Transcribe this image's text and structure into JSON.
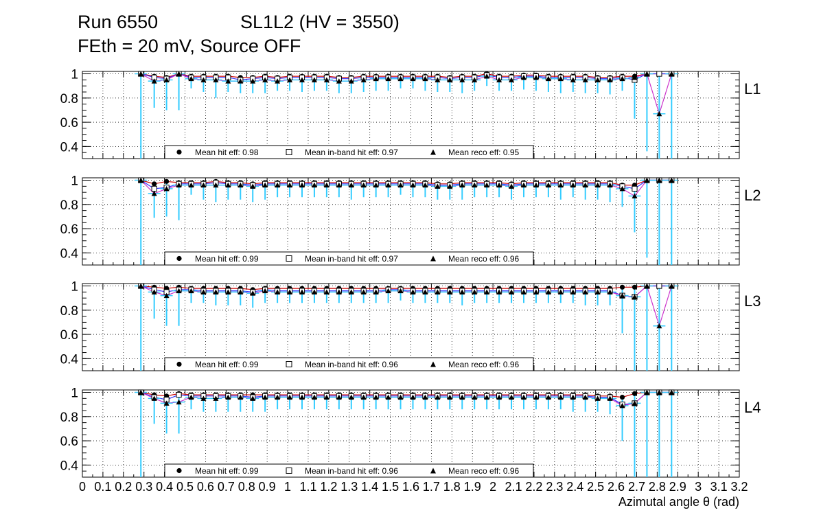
{
  "header": {
    "run": "Run 6550",
    "superlayer": "SL1L2 (HV = 3550)",
    "conditions": "FEth = 20 mV, Source OFF"
  },
  "colors": {
    "hit": "#000000",
    "inband": "#000000",
    "reco": "#000000",
    "error_bar": "#33ccff",
    "line_red": "#cc0000",
    "line_blue": "#3333ff",
    "line_magenta": "#cc33cc",
    "grid": "#000000"
  },
  "chart_data": {
    "type": "scatter",
    "xlabel": "Azimutal angle θ (rad)",
    "xlim": [
      0,
      3.2
    ],
    "ylim": [
      0.3,
      1.02
    ],
    "x_tick_labels": [
      "0",
      "0.1",
      "0.2",
      "0.3",
      "0.4",
      "0.5",
      "0.6",
      "0.7",
      "0.8",
      "0.9",
      "1",
      "1.1",
      "1.2",
      "1.3",
      "1.4",
      "1.5",
      "1.6",
      "1.7",
      "1.8",
      "1.9",
      "2",
      "2.1",
      "2.2",
      "2.3",
      "2.4",
      "2.5",
      "2.6",
      "2.7",
      "2.8",
      "2.9",
      "3",
      "3.1",
      "3.2"
    ],
    "x_ticks": [
      0,
      0.1,
      0.2,
      0.3,
      0.4,
      0.5,
      0.6,
      0.7,
      0.8,
      0.9,
      1.0,
      1.1,
      1.2,
      1.3,
      1.4,
      1.5,
      1.6,
      1.7,
      1.8,
      1.9,
      2.0,
      2.1,
      2.2,
      2.3,
      2.4,
      2.5,
      2.6,
      2.7,
      2.8,
      2.9,
      3.0,
      3.1,
      3.2
    ],
    "y_ticks": [
      0.4,
      0.6,
      0.8,
      1
    ],
    "y_tick_labels": [
      "0.4",
      "0.6",
      "0.8",
      "1"
    ],
    "grid": true,
    "x": [
      0.285,
      0.35,
      0.41,
      0.47,
      0.53,
      0.59,
      0.65,
      0.71,
      0.77,
      0.83,
      0.89,
      0.95,
      1.01,
      1.07,
      1.13,
      1.19,
      1.25,
      1.31,
      1.37,
      1.43,
      1.49,
      1.55,
      1.61,
      1.67,
      1.73,
      1.79,
      1.85,
      1.91,
      1.97,
      2.03,
      2.09,
      2.15,
      2.21,
      2.27,
      2.33,
      2.39,
      2.45,
      2.51,
      2.57,
      2.63,
      2.69,
      2.75,
      2.81,
      2.87
    ],
    "panels": [
      {
        "name": "L1",
        "legend": {
          "hit": "Mean hit  eff: 0.98",
          "inband": "Mean in-band hit eff: 0.97",
          "reco": "Mean reco eff: 0.95"
        },
        "hit": [
          1.0,
          0.98,
          0.97,
          1.0,
          0.98,
          0.98,
          0.98,
          0.98,
          0.97,
          0.97,
          0.98,
          0.97,
          0.98,
          0.98,
          0.98,
          0.98,
          0.97,
          0.97,
          0.98,
          0.98,
          0.98,
          0.98,
          0.98,
          0.98,
          0.98,
          0.97,
          0.98,
          0.98,
          1.0,
          0.98,
          0.98,
          0.99,
          0.99,
          0.98,
          0.98,
          0.98,
          0.98,
          0.97,
          0.97,
          0.98,
          0.98,
          1.0,
          1.0,
          1.0
        ],
        "inband": [
          1.0,
          0.97,
          0.96,
          1.0,
          0.97,
          0.97,
          0.97,
          0.97,
          0.95,
          0.96,
          0.97,
          0.96,
          0.97,
          0.97,
          0.97,
          0.97,
          0.96,
          0.96,
          0.97,
          0.97,
          0.97,
          0.97,
          0.97,
          0.97,
          0.97,
          0.96,
          0.97,
          0.97,
          0.99,
          0.97,
          0.97,
          0.98,
          0.98,
          0.97,
          0.97,
          0.97,
          0.97,
          0.96,
          0.96,
          0.97,
          0.95,
          1.0,
          1.0,
          1.0
        ],
        "reco": [
          1.0,
          0.94,
          0.95,
          1.0,
          0.96,
          0.95,
          0.95,
          0.94,
          0.94,
          0.94,
          0.95,
          0.94,
          0.95,
          0.95,
          0.95,
          0.95,
          0.94,
          0.94,
          0.95,
          0.96,
          0.96,
          0.96,
          0.96,
          0.96,
          0.95,
          0.95,
          0.95,
          0.95,
          0.98,
          0.95,
          0.95,
          0.97,
          0.97,
          0.96,
          0.96,
          0.95,
          0.95,
          0.95,
          0.95,
          0.96,
          0.97,
          1.0,
          0.67,
          1.0
        ],
        "err_low": [
          0.3,
          0.72,
          0.7,
          0.7,
          0.88,
          0.85,
          0.8,
          0.85,
          0.84,
          0.84,
          0.84,
          0.86,
          0.86,
          0.85,
          0.86,
          0.86,
          0.84,
          0.84,
          0.85,
          0.86,
          0.86,
          0.88,
          0.88,
          0.86,
          0.85,
          0.85,
          0.84,
          0.86,
          0.9,
          0.86,
          0.86,
          0.87,
          0.86,
          0.85,
          0.84,
          0.85,
          0.84,
          0.84,
          0.83,
          0.86,
          0.63,
          0.36,
          0.3,
          0.3
        ]
      },
      {
        "name": "L2",
        "legend": {
          "hit": "Mean hit  eff: 0.99",
          "inband": "Mean in-band hit eff: 0.97",
          "reco": "Mean reco eff: 0.96"
        },
        "hit": [
          1.0,
          0.97,
          0.99,
          0.98,
          0.98,
          0.98,
          0.99,
          0.98,
          0.98,
          0.97,
          0.98,
          0.98,
          0.98,
          0.98,
          0.98,
          0.98,
          0.98,
          0.98,
          0.98,
          0.98,
          0.98,
          0.98,
          0.98,
          0.98,
          0.97,
          0.97,
          0.98,
          0.98,
          0.98,
          0.98,
          0.97,
          0.98,
          0.98,
          0.98,
          0.98,
          0.98,
          0.98,
          0.98,
          0.98,
          0.96,
          0.96,
          1.0,
          1.0,
          1.0
        ],
        "inband": [
          1.0,
          0.93,
          0.94,
          0.97,
          0.97,
          0.97,
          0.98,
          0.97,
          0.97,
          0.96,
          0.97,
          0.97,
          0.97,
          0.97,
          0.97,
          0.97,
          0.97,
          0.97,
          0.97,
          0.97,
          0.97,
          0.97,
          0.97,
          0.97,
          0.96,
          0.96,
          0.97,
          0.97,
          0.97,
          0.97,
          0.96,
          0.97,
          0.97,
          0.97,
          0.97,
          0.97,
          0.97,
          0.97,
          0.97,
          0.95,
          0.93,
          1.0,
          1.0,
          1.0
        ],
        "reco": [
          1.0,
          0.89,
          0.93,
          0.96,
          0.96,
          0.96,
          0.96,
          0.96,
          0.96,
          0.95,
          0.96,
          0.96,
          0.96,
          0.96,
          0.96,
          0.96,
          0.96,
          0.96,
          0.96,
          0.96,
          0.96,
          0.96,
          0.96,
          0.96,
          0.95,
          0.95,
          0.96,
          0.96,
          0.96,
          0.96,
          0.95,
          0.96,
          0.96,
          0.96,
          0.96,
          0.96,
          0.96,
          0.96,
          0.96,
          0.93,
          0.87,
          1.0,
          1.0,
          1.0
        ],
        "err_low": [
          0.3,
          0.69,
          0.7,
          0.67,
          0.88,
          0.84,
          0.82,
          0.84,
          0.84,
          0.82,
          0.84,
          0.86,
          0.86,
          0.86,
          0.86,
          0.86,
          0.86,
          0.84,
          0.86,
          0.86,
          0.86,
          0.88,
          0.86,
          0.86,
          0.84,
          0.84,
          0.84,
          0.86,
          0.86,
          0.86,
          0.84,
          0.86,
          0.86,
          0.86,
          0.84,
          0.86,
          0.84,
          0.84,
          0.82,
          0.78,
          0.57,
          0.36,
          0.3,
          0.3
        ]
      },
      {
        "name": "L3",
        "legend": {
          "hit": "Mean hit  eff: 0.99",
          "inband": "Mean in-band hit eff: 0.96",
          "reco": "Mean reco eff: 0.96"
        },
        "hit": [
          1.0,
          0.99,
          0.98,
          0.99,
          0.98,
          0.98,
          0.98,
          0.98,
          0.98,
          0.97,
          0.98,
          0.98,
          0.98,
          0.98,
          0.98,
          0.98,
          0.98,
          0.98,
          0.98,
          0.98,
          0.98,
          0.98,
          0.98,
          0.98,
          0.98,
          0.98,
          0.98,
          0.98,
          0.98,
          0.98,
          0.98,
          0.98,
          0.98,
          0.98,
          0.98,
          0.98,
          0.98,
          0.98,
          0.98,
          0.99,
          0.99,
          1.0,
          1.0,
          1.0
        ],
        "inband": [
          1.0,
          0.97,
          0.95,
          0.97,
          0.97,
          0.96,
          0.96,
          0.96,
          0.96,
          0.95,
          0.97,
          0.96,
          0.96,
          0.96,
          0.96,
          0.96,
          0.96,
          0.96,
          0.96,
          0.96,
          0.97,
          0.97,
          0.96,
          0.96,
          0.96,
          0.96,
          0.96,
          0.96,
          0.96,
          0.96,
          0.96,
          0.96,
          0.96,
          0.96,
          0.96,
          0.96,
          0.96,
          0.96,
          0.96,
          0.92,
          0.91,
          1.0,
          1.0,
          1.0
        ],
        "reco": [
          1.0,
          0.95,
          0.92,
          0.96,
          0.96,
          0.95,
          0.95,
          0.95,
          0.95,
          0.94,
          0.96,
          0.95,
          0.95,
          0.95,
          0.95,
          0.95,
          0.95,
          0.95,
          0.95,
          0.95,
          0.96,
          0.96,
          0.95,
          0.95,
          0.95,
          0.95,
          0.95,
          0.95,
          0.95,
          0.95,
          0.95,
          0.95,
          0.95,
          0.95,
          0.95,
          0.95,
          0.95,
          0.95,
          0.95,
          0.92,
          0.91,
          1.0,
          0.67,
          1.0
        ],
        "err_low": [
          0.3,
          0.73,
          0.67,
          0.67,
          0.86,
          0.86,
          0.84,
          0.84,
          0.84,
          0.82,
          0.86,
          0.86,
          0.86,
          0.86,
          0.86,
          0.86,
          0.86,
          0.86,
          0.86,
          0.86,
          0.86,
          0.88,
          0.86,
          0.86,
          0.86,
          0.86,
          0.84,
          0.86,
          0.86,
          0.86,
          0.86,
          0.86,
          0.86,
          0.86,
          0.86,
          0.86,
          0.84,
          0.84,
          0.84,
          0.61,
          0.3,
          0.3,
          0.3,
          0.3
        ]
      },
      {
        "name": "L4",
        "legend": {
          "hit": "Mean hit  eff: 0.99",
          "inband": "Mean in-band hit eff: 0.96",
          "reco": "Mean reco eff: 0.96"
        },
        "hit": [
          1.0,
          0.98,
          0.97,
          0.99,
          0.98,
          0.98,
          0.98,
          0.98,
          0.98,
          0.98,
          0.98,
          0.98,
          0.98,
          0.98,
          0.98,
          0.98,
          0.98,
          0.98,
          0.98,
          0.98,
          0.98,
          0.98,
          0.98,
          0.98,
          0.98,
          0.98,
          0.98,
          0.98,
          0.98,
          0.98,
          0.98,
          0.98,
          0.98,
          0.98,
          0.98,
          0.98,
          0.98,
          0.97,
          0.97,
          0.96,
          0.99,
          1.0,
          1.0,
          1.0
        ],
        "inband": [
          1.0,
          0.96,
          0.94,
          0.98,
          0.97,
          0.97,
          0.97,
          0.97,
          0.97,
          0.96,
          0.97,
          0.97,
          0.97,
          0.97,
          0.97,
          0.97,
          0.97,
          0.97,
          0.97,
          0.97,
          0.97,
          0.97,
          0.97,
          0.97,
          0.97,
          0.97,
          0.97,
          0.97,
          0.97,
          0.97,
          0.97,
          0.97,
          0.97,
          0.97,
          0.97,
          0.97,
          0.97,
          0.96,
          0.96,
          0.9,
          0.91,
          1.0,
          1.0,
          1.0
        ],
        "reco": [
          1.0,
          0.95,
          0.91,
          0.92,
          0.96,
          0.95,
          0.95,
          0.96,
          0.96,
          0.95,
          0.96,
          0.96,
          0.96,
          0.96,
          0.96,
          0.96,
          0.96,
          0.96,
          0.96,
          0.96,
          0.96,
          0.96,
          0.96,
          0.96,
          0.96,
          0.96,
          0.96,
          0.96,
          0.96,
          0.96,
          0.96,
          0.96,
          0.96,
          0.96,
          0.96,
          0.96,
          0.96,
          0.95,
          0.95,
          0.89,
          0.91,
          1.0,
          1.0,
          1.0
        ],
        "err_low": [
          0.3,
          0.74,
          0.66,
          0.66,
          0.86,
          0.84,
          0.84,
          0.84,
          0.84,
          0.84,
          0.84,
          0.86,
          0.86,
          0.86,
          0.86,
          0.86,
          0.86,
          0.86,
          0.86,
          0.86,
          0.86,
          0.86,
          0.86,
          0.86,
          0.86,
          0.86,
          0.86,
          0.86,
          0.86,
          0.86,
          0.86,
          0.86,
          0.86,
          0.86,
          0.86,
          0.84,
          0.84,
          0.84,
          0.82,
          0.6,
          0.3,
          0.3,
          0.3,
          0.3
        ]
      }
    ]
  }
}
